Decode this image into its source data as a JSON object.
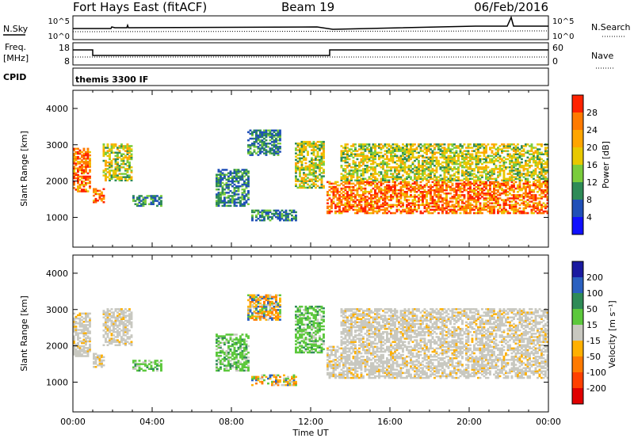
{
  "header": {
    "title": "Fort Hays East (fitACF)",
    "beam": "Beam 19",
    "date": "06/Feb/2016"
  },
  "noise_panel": {
    "left_label": "N.Sky",
    "left_ticks": [
      "10^5",
      "10^0"
    ],
    "right_ticks": [
      "10^5",
      "10^0"
    ],
    "right_label": "N.Search"
  },
  "freq_panel": {
    "left_label_line1": "Freq.",
    "left_label_line2": "[MHz]",
    "left_ticks": [
      "18",
      "8"
    ],
    "right_ticks": [
      "60",
      "0"
    ],
    "right_label": "Nave"
  },
  "cpid_panel": {
    "label": "CPID",
    "program": "themis 3300 IF"
  },
  "x_axis": {
    "label": "Time UT",
    "ticks": [
      "00:00",
      "04:00",
      "08:00",
      "12:00",
      "16:00",
      "20:00",
      "00:00"
    ]
  },
  "chart_data": [
    {
      "type": "heatmap",
      "panel": "power",
      "xlabel": "Time UT",
      "ylabel": "Slant Range [km]",
      "xlim": [
        "00:00",
        "24:00"
      ],
      "ylim": [
        180,
        4500
      ],
      "yticks": [
        "1000",
        "2000",
        "3000",
        "4000"
      ],
      "colorbar_label": "Power [dB]",
      "colorbar_ticks": [
        "28",
        "24",
        "20",
        "16",
        "12",
        "8",
        "4"
      ],
      "colorbar_colors": [
        "#ff2200",
        "#ff7a00",
        "#ffa500",
        "#e8c800",
        "#7acc3c",
        "#2e8b57",
        "#2050b8",
        "#1010ff"
      ],
      "regions": [
        {
          "t0": 0.0,
          "t1": 0.8,
          "r0": 1700,
          "r1": 2900,
          "level": "high"
        },
        {
          "t0": 1.0,
          "t1": 1.6,
          "r0": 1400,
          "r1": 1800,
          "level": "high"
        },
        {
          "t0": 1.5,
          "t1": 3.0,
          "r0": 2000,
          "r1": 3000,
          "level": "mid"
        },
        {
          "t0": 3.0,
          "t1": 4.4,
          "r0": 1300,
          "r1": 1600,
          "level": "low"
        },
        {
          "t0": 7.2,
          "t1": 8.8,
          "r0": 1300,
          "r1": 2300,
          "level": "low"
        },
        {
          "t0": 8.8,
          "t1": 10.4,
          "r0": 2700,
          "r1": 3400,
          "level": "low"
        },
        {
          "t0": 9.0,
          "t1": 11.2,
          "r0": 900,
          "r1": 1200,
          "level": "low"
        },
        {
          "t0": 11.2,
          "t1": 12.6,
          "r0": 1800,
          "r1": 3100,
          "level": "mid"
        },
        {
          "t0": 12.8,
          "t1": 24.0,
          "r0": 1100,
          "r1": 2000,
          "level": "high"
        },
        {
          "t0": 13.5,
          "t1": 24.0,
          "r0": 2000,
          "r1": 3000,
          "level": "mid"
        }
      ]
    },
    {
      "type": "heatmap",
      "panel": "velocity",
      "xlabel": "Time UT",
      "ylabel": "Slant Range [km]",
      "xlim": [
        "00:00",
        "24:00"
      ],
      "ylim": [
        180,
        4500
      ],
      "yticks": [
        "1000",
        "2000",
        "3000",
        "4000"
      ],
      "colorbar_label": "Velocity [m s⁻¹]",
      "colorbar_ticks": [
        "200",
        "100",
        "50",
        "15",
        "-15",
        "-50",
        "-100",
        "-200"
      ],
      "colorbar_colors": [
        "#1a1aa0",
        "#2a60c0",
        "#2e8b57",
        "#5cc83c",
        "#c8c8c0",
        "#ffb000",
        "#ff7a00",
        "#ff4000",
        "#e00000"
      ],
      "regions": [
        {
          "t0": 0.0,
          "t1": 0.8,
          "r0": 1700,
          "r1": 2900,
          "class": "ground"
        },
        {
          "t0": 1.0,
          "t1": 1.6,
          "r0": 1400,
          "r1": 1800,
          "class": "ground"
        },
        {
          "t0": 1.5,
          "t1": 3.0,
          "r0": 2000,
          "r1": 3000,
          "class": "ground"
        },
        {
          "t0": 3.0,
          "t1": 4.4,
          "r0": 1300,
          "r1": 1600,
          "class": "positive"
        },
        {
          "t0": 7.2,
          "t1": 8.8,
          "r0": 1300,
          "r1": 2300,
          "class": "positive"
        },
        {
          "t0": 8.8,
          "t1": 10.4,
          "r0": 2700,
          "r1": 3400,
          "class": "mixed"
        },
        {
          "t0": 9.0,
          "t1": 11.2,
          "r0": 900,
          "r1": 1200,
          "class": "mixed"
        },
        {
          "t0": 11.2,
          "t1": 12.6,
          "r0": 1800,
          "r1": 3100,
          "class": "positive"
        },
        {
          "t0": 12.8,
          "t1": 24.0,
          "r0": 1100,
          "r1": 2000,
          "class": "ground"
        },
        {
          "t0": 13.5,
          "t1": 24.0,
          "r0": 2000,
          "r1": 3000,
          "class": "ground"
        }
      ]
    }
  ]
}
